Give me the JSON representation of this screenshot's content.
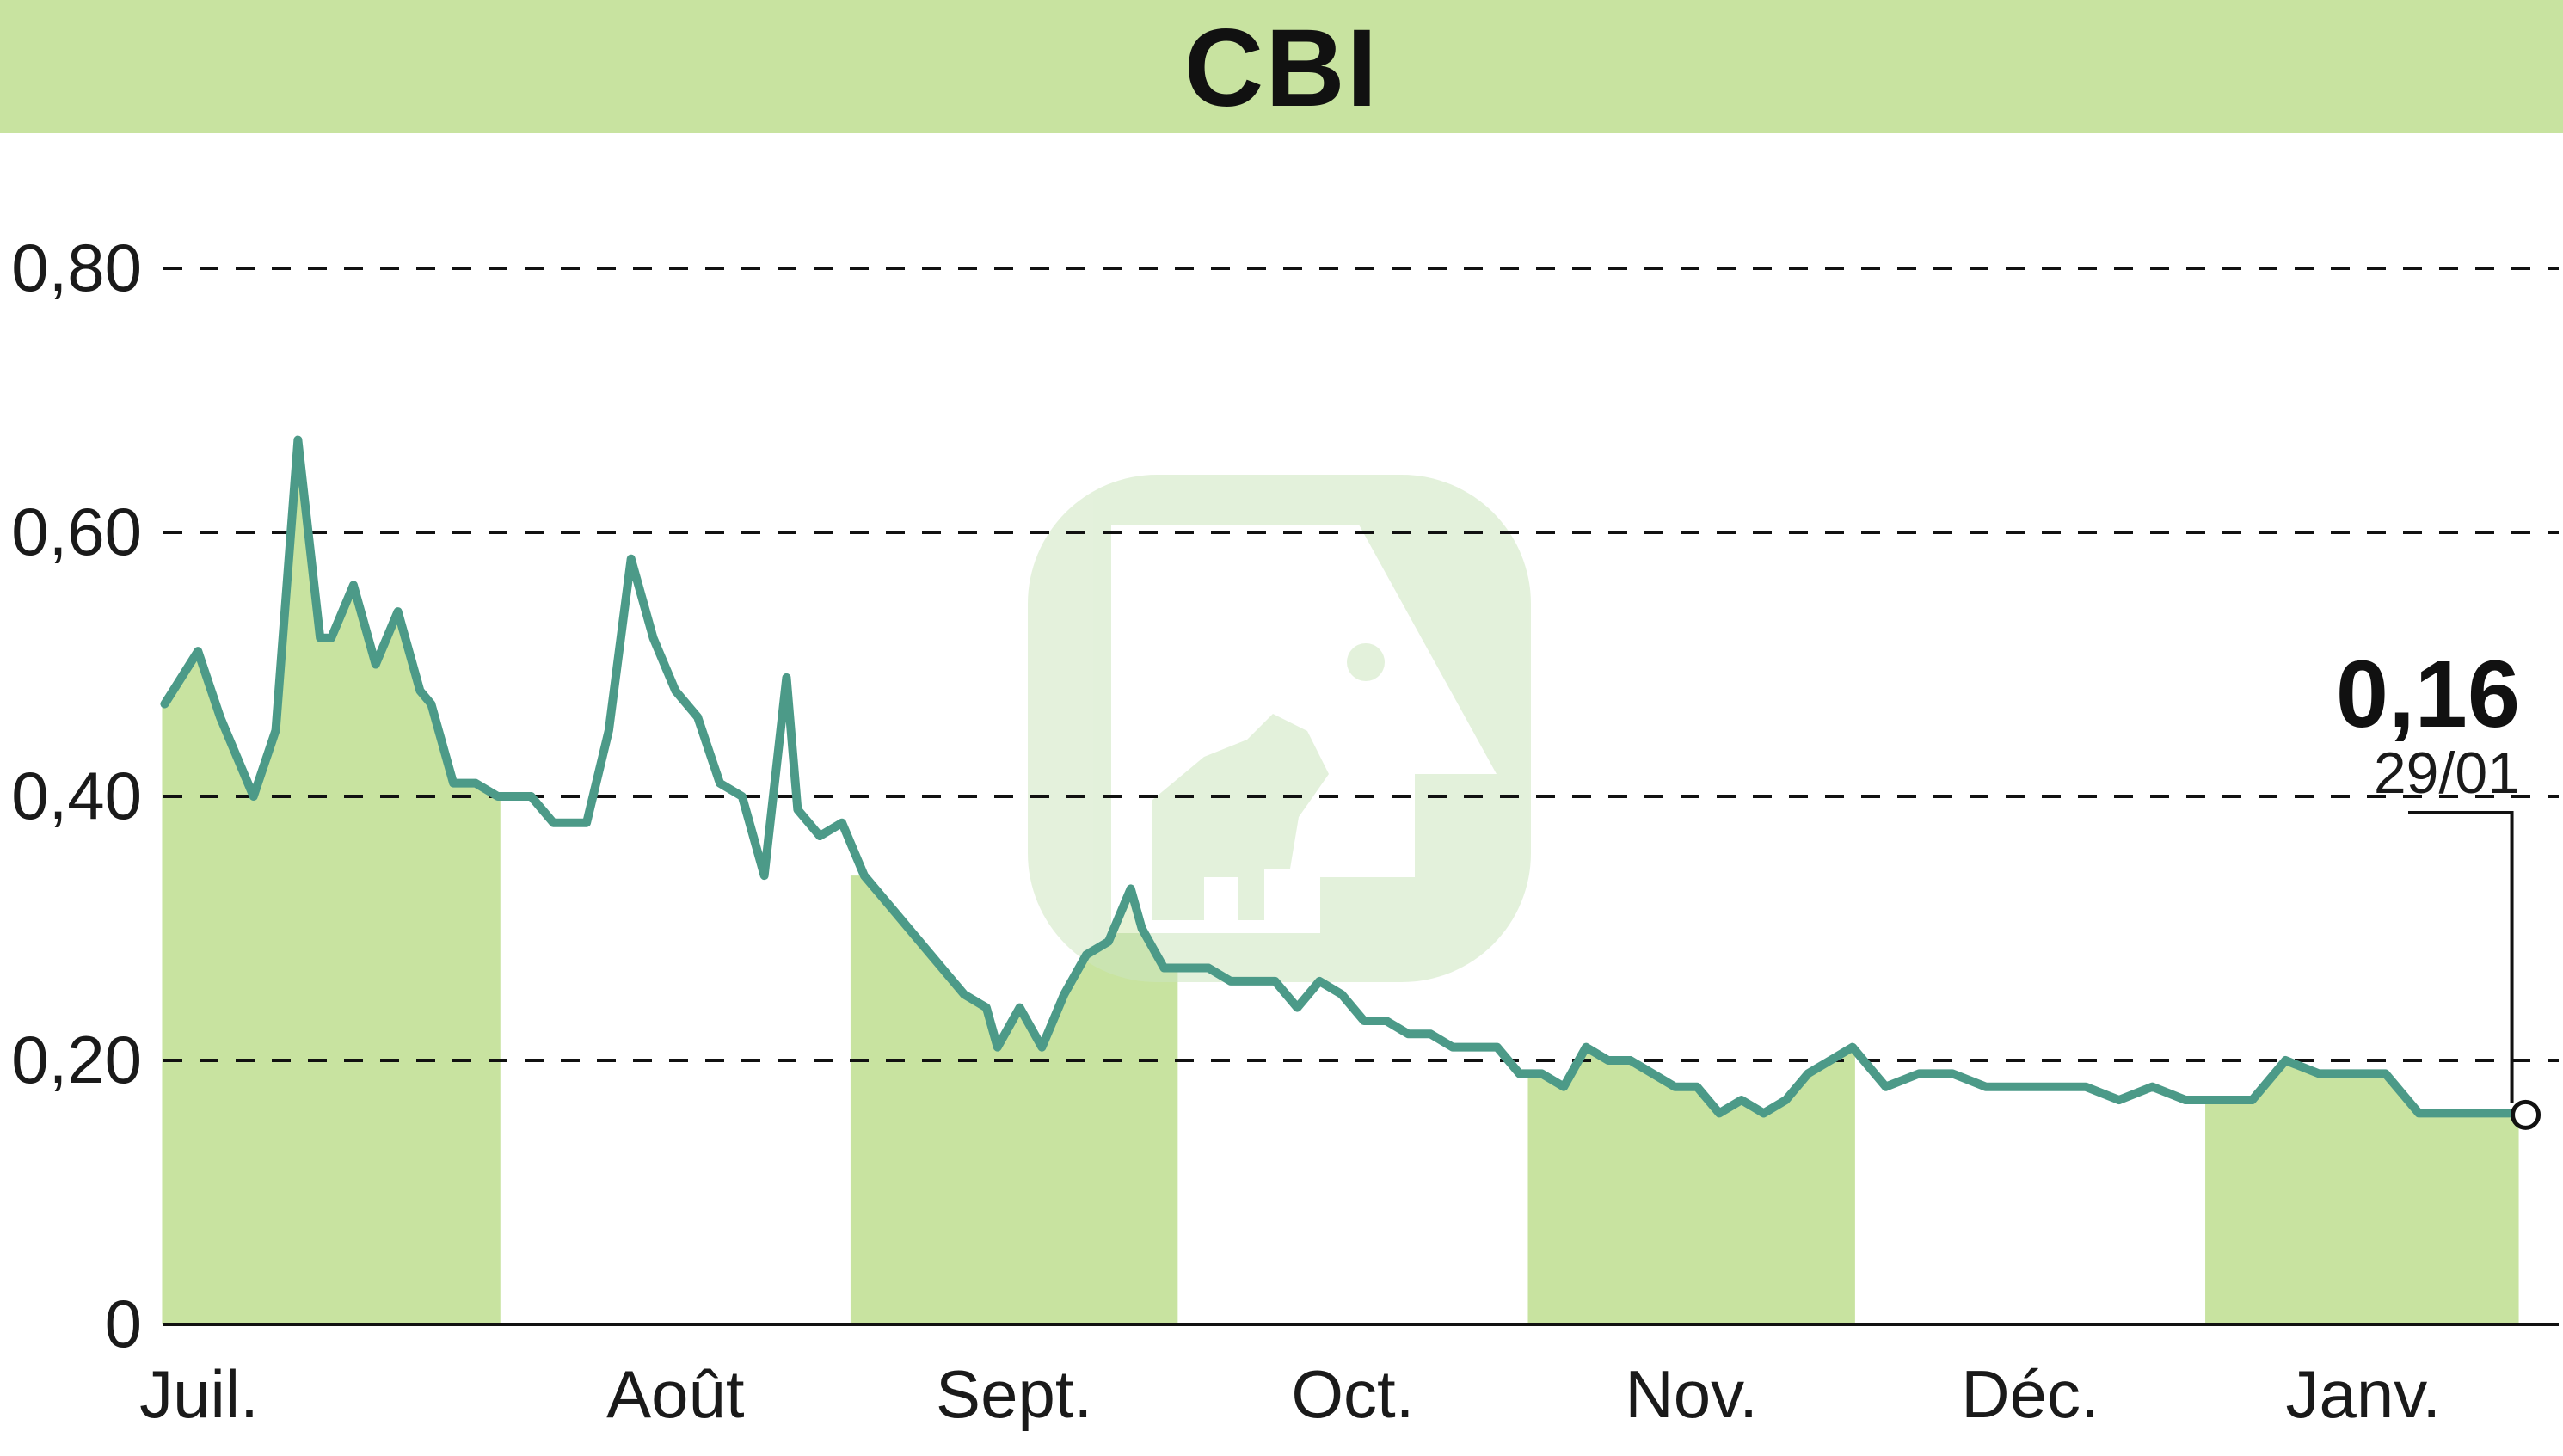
{
  "title": "CBI",
  "colors": {
    "title_bar": "#c8e3a0",
    "month_band": "#c8e3a0",
    "line": "#4c9a88",
    "watermark": "#cde6bf"
  },
  "chart_data": {
    "type": "line",
    "title": "CBI",
    "xlabel": "",
    "ylabel": "",
    "ylim": [
      0,
      0.8
    ],
    "y_ticks": [
      {
        "value": 0,
        "label": "0"
      },
      {
        "value": 0.2,
        "label": "0,20"
      },
      {
        "value": 0.4,
        "label": "0,40"
      },
      {
        "value": 0.6,
        "label": "0,60"
      },
      {
        "value": 0.8,
        "label": "0,80"
      }
    ],
    "grid": "horizontal dashed",
    "x_range": [
      "2024-07-01",
      "2025-01-29"
    ],
    "months": [
      {
        "label": "Juil.",
        "start": "2024-07-01",
        "end": "2024-07-31",
        "shaded": true
      },
      {
        "label": "Août",
        "start": "2024-08-01",
        "end": "2024-08-31",
        "shaded": false
      },
      {
        "label": "Sept.",
        "start": "2024-09-01",
        "end": "2024-09-30",
        "shaded": true
      },
      {
        "label": "Oct.",
        "start": "2024-10-01",
        "end": "2024-10-31",
        "shaded": false
      },
      {
        "label": "Nov.",
        "start": "2024-11-01",
        "end": "2024-11-30",
        "shaded": true
      },
      {
        "label": "Déc.",
        "start": "2024-12-01",
        "end": "2024-12-31",
        "shaded": false
      },
      {
        "label": "Janv.",
        "start": "2025-01-01",
        "end": "2025-01-29",
        "shaded": true
      }
    ],
    "series": [
      {
        "x": [
          "2024-07-01",
          "2024-07-04",
          "2024-07-06",
          "2024-07-09",
          "2024-07-11",
          "2024-07-13",
          "2024-07-15",
          "2024-07-16",
          "2024-07-18",
          "2024-07-20",
          "2024-07-22",
          "2024-07-24",
          "2024-07-25",
          "2024-07-27",
          "2024-07-29",
          "2024-07-31",
          "2024-08-01",
          "2024-08-03",
          "2024-08-05",
          "2024-08-08",
          "2024-08-10",
          "2024-08-12",
          "2024-08-14",
          "2024-08-16",
          "2024-08-18",
          "2024-08-20",
          "2024-08-22",
          "2024-08-24",
          "2024-08-26",
          "2024-08-27",
          "2024-08-29",
          "2024-08-31",
          "2024-09-02",
          "2024-09-05",
          "2024-09-07",
          "2024-09-09",
          "2024-09-11",
          "2024-09-13",
          "2024-09-14",
          "2024-09-16",
          "2024-09-18",
          "2024-09-20",
          "2024-09-22",
          "2024-09-24",
          "2024-09-26",
          "2024-09-27",
          "2024-09-29",
          "2024-10-01",
          "2024-10-03",
          "2024-10-05",
          "2024-10-07",
          "2024-10-09",
          "2024-10-11",
          "2024-10-13",
          "2024-10-15",
          "2024-10-17",
          "2024-10-19",
          "2024-10-21",
          "2024-10-23",
          "2024-10-25",
          "2024-10-27",
          "2024-10-29",
          "2024-10-31",
          "2024-11-02",
          "2024-11-04",
          "2024-11-06",
          "2024-11-08",
          "2024-11-10",
          "2024-11-12",
          "2024-11-14",
          "2024-11-16",
          "2024-11-18",
          "2024-11-20",
          "2024-11-22",
          "2024-11-24",
          "2024-11-26",
          "2024-11-28",
          "2024-11-30",
          "2024-12-03",
          "2024-12-06",
          "2024-12-09",
          "2024-12-12",
          "2024-12-15",
          "2024-12-18",
          "2024-12-21",
          "2024-12-24",
          "2024-12-27",
          "2024-12-30",
          "2025-01-02",
          "2025-01-05",
          "2025-01-08",
          "2025-01-11",
          "2025-01-14",
          "2025-01-17",
          "2025-01-20",
          "2025-01-23",
          "2025-01-26",
          "2025-01-29"
        ],
        "y": [
          0.47,
          0.51,
          0.46,
          0.4,
          0.45,
          0.67,
          0.52,
          0.52,
          0.56,
          0.5,
          0.54,
          0.48,
          0.47,
          0.41,
          0.41,
          0.4,
          0.4,
          0.4,
          0.38,
          0.38,
          0.45,
          0.58,
          0.52,
          0.48,
          0.46,
          0.41,
          0.4,
          0.34,
          0.49,
          0.39,
          0.37,
          0.38,
          0.34,
          0.31,
          0.29,
          0.27,
          0.25,
          0.24,
          0.21,
          0.24,
          0.21,
          0.25,
          0.28,
          0.29,
          0.33,
          0.3,
          0.27,
          0.27,
          0.27,
          0.26,
          0.26,
          0.26,
          0.24,
          0.26,
          0.25,
          0.23,
          0.23,
          0.22,
          0.22,
          0.21,
          0.21,
          0.21,
          0.19,
          0.19,
          0.18,
          0.21,
          0.2,
          0.2,
          0.19,
          0.18,
          0.18,
          0.16,
          0.17,
          0.16,
          0.17,
          0.19,
          0.2,
          0.21,
          0.18,
          0.19,
          0.19,
          0.18,
          0.18,
          0.18,
          0.18,
          0.17,
          0.18,
          0.17,
          0.17,
          0.17,
          0.2,
          0.19,
          0.19,
          0.19,
          0.16,
          0.16,
          0.16,
          0.16
        ]
      }
    ],
    "last_value": {
      "label": "0,16",
      "date": "29/01"
    }
  }
}
